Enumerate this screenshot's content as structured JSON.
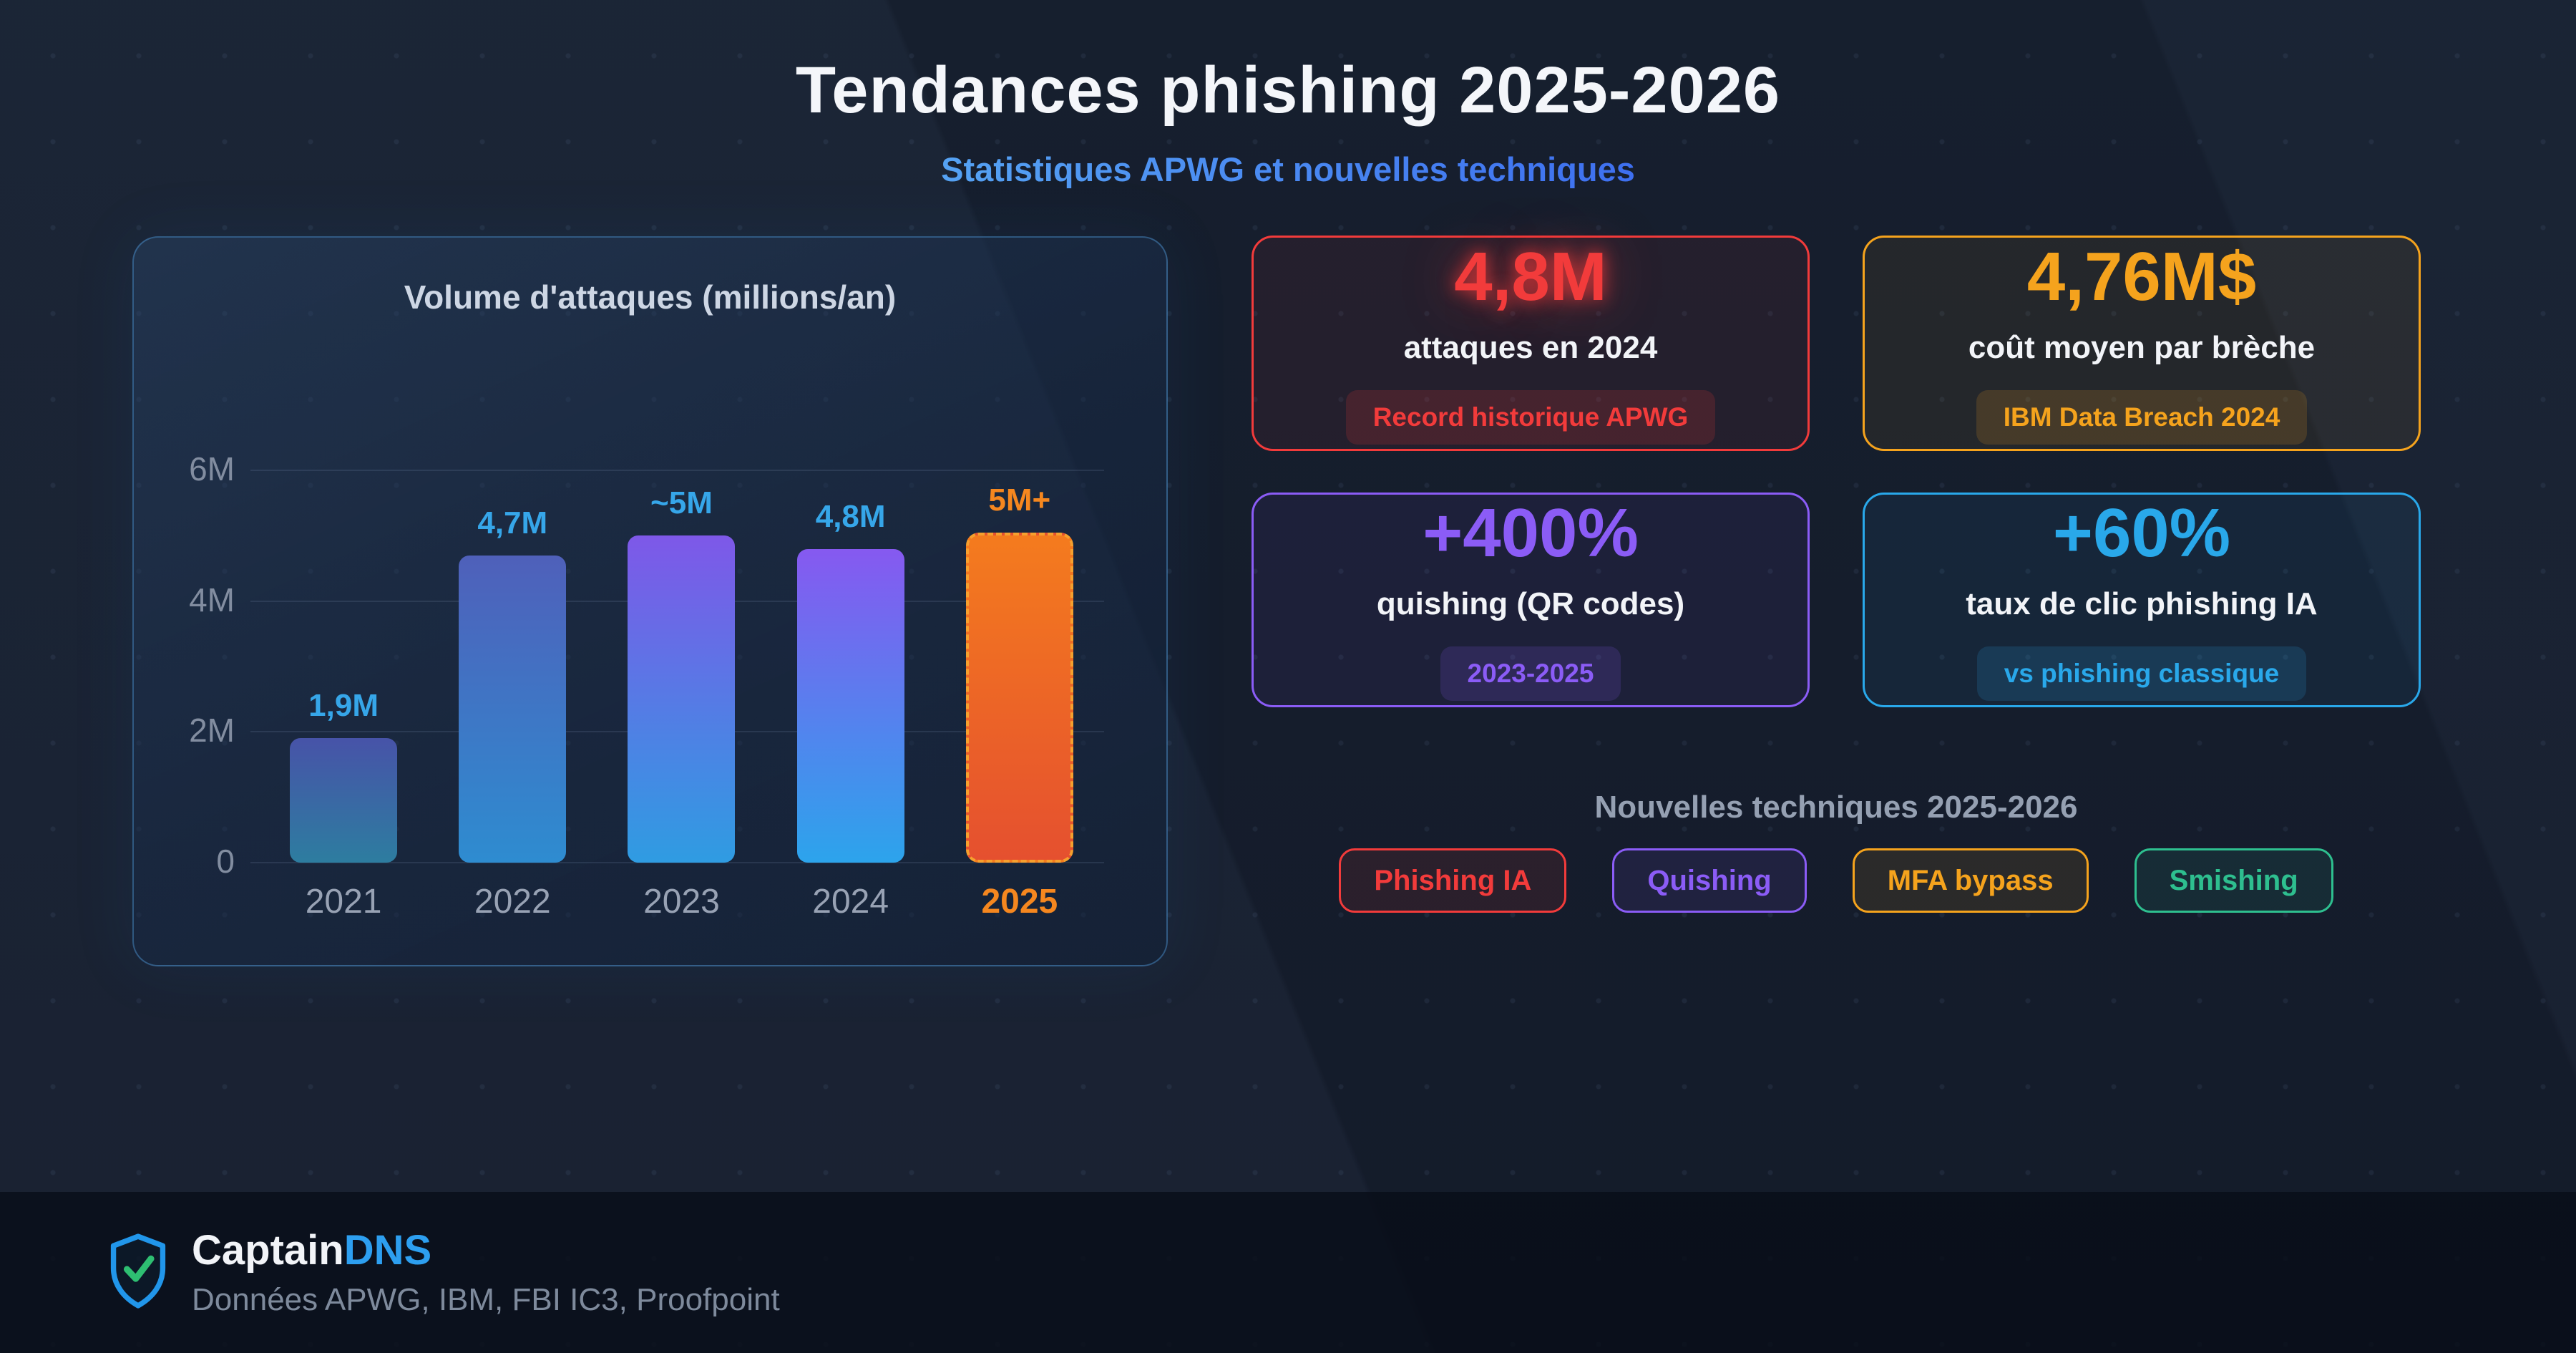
{
  "header": {
    "title": "Tendances phishing 2025-2026",
    "subtitle": "Statistiques APWG et nouvelles techniques",
    "subtitle_color": "#4687ec"
  },
  "chart_data": {
    "type": "bar",
    "title": "Volume d'attaques (millions/an)",
    "categories": [
      "2021",
      "2022",
      "2023",
      "2024",
      "2025"
    ],
    "values": [
      1.9,
      4.7,
      5.0,
      4.8,
      5.05
    ],
    "value_labels": [
      "1,9M",
      "4,7M",
      "~5M",
      "4,8M",
      "5M+"
    ],
    "xlabel": "",
    "ylabel": "",
    "ylim": [
      0,
      6
    ],
    "yticks": [
      0,
      2,
      4,
      6
    ],
    "ytick_labels": [
      "0",
      "2M",
      "4M",
      "6M"
    ],
    "grid": true,
    "highlight_index": 4,
    "bar_gradients": [
      [
        "#4753a8",
        "#2d7da0"
      ],
      [
        "#4f60ba",
        "#2e8cd0"
      ],
      [
        "#7e58e8",
        "#2f9ce2"
      ],
      [
        "#8659f0",
        "#2ca4ec"
      ],
      [
        "#f47b1e",
        "#e5502f"
      ]
    ],
    "label_colors": [
      "#36a6e9",
      "#36a6e9",
      "#36a6e9",
      "#36a6e9",
      "#f5871f"
    ],
    "year_color": "#98a2b4",
    "highlight_year_color": "#f5871f"
  },
  "stats": {
    "cards": [
      {
        "value": "4,8M",
        "label": "attaques en 2024",
        "badge": "Record historique APWG",
        "color": "#f23b3b",
        "glow": true
      },
      {
        "value": "4,76M$",
        "label": "coût moyen par brèche",
        "badge": "IBM Data Breach 2024",
        "color": "#f5a31d",
        "glow": false
      },
      {
        "value": "+400%",
        "label": "quishing (QR codes)",
        "badge": "2023-2025",
        "color": "#8b5cf6",
        "glow": false
      },
      {
        "value": "+60%",
        "label": "taux de clic phishing IA",
        "badge": "vs phishing classique",
        "color": "#29a8ea",
        "glow": false
      }
    ]
  },
  "techniques": {
    "title": "Nouvelles techniques 2025-2026",
    "items": [
      {
        "label": "Phishing IA",
        "color": "#f23b3b"
      },
      {
        "label": "Quishing",
        "color": "#8b5cf6"
      },
      {
        "label": "MFA bypass",
        "color": "#f5a31d"
      },
      {
        "label": "Smishing",
        "color": "#2ebf8f"
      }
    ]
  },
  "footer": {
    "brand_first": "Captain",
    "brand_second": "DNS",
    "brand_accent": "#2d9ff0",
    "sources": "Données APWG, IBM, FBI IC3, Proofpoint",
    "shield_icon": "shield-check-icon"
  }
}
